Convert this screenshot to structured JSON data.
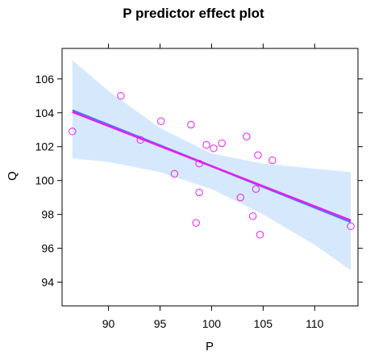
{
  "chart_data": {
    "type": "scatter",
    "title": "P predictor effect plot",
    "xlabel": "P",
    "ylabel": "Q",
    "xlim": [
      85.5,
      114.2
    ],
    "ylim": [
      92.6,
      107.8
    ],
    "xticks": [
      90,
      95,
      100,
      105,
      110
    ],
    "yticks": [
      94,
      96,
      98,
      100,
      102,
      104,
      106
    ],
    "grid": false,
    "points": [
      {
        "x": 86.5,
        "y": 102.9
      },
      {
        "x": 91.2,
        "y": 105.0
      },
      {
        "x": 93.1,
        "y": 102.4
      },
      {
        "x": 95.1,
        "y": 103.5
      },
      {
        "x": 96.4,
        "y": 100.4
      },
      {
        "x": 98.0,
        "y": 103.3
      },
      {
        "x": 98.5,
        "y": 97.5
      },
      {
        "x": 98.8,
        "y": 101.0
      },
      {
        "x": 98.8,
        "y": 99.3
      },
      {
        "x": 99.5,
        "y": 102.1
      },
      {
        "x": 100.2,
        "y": 101.9
      },
      {
        "x": 101.0,
        "y": 102.2
      },
      {
        "x": 102.8,
        "y": 99.0
      },
      {
        "x": 103.4,
        "y": 102.6
      },
      {
        "x": 104.0,
        "y": 97.9
      },
      {
        "x": 104.3,
        "y": 99.5
      },
      {
        "x": 104.5,
        "y": 101.5
      },
      {
        "x": 104.7,
        "y": 96.8
      },
      {
        "x": 105.9,
        "y": 101.2
      },
      {
        "x": 113.5,
        "y": 97.3
      }
    ],
    "fit_line": {
      "x": [
        86.5,
        113.5
      ],
      "y": [
        104.15,
        97.55
      ],
      "color": "#3b82f6"
    },
    "smooth_line": {
      "x": [
        86.5,
        113.5
      ],
      "y": [
        104.05,
        97.65
      ],
      "color": "#e81cf0"
    },
    "confidence_band": {
      "x": [
        86.5,
        90,
        95,
        100,
        105,
        110,
        113.5
      ],
      "upper": [
        107.1,
        105.3,
        103.1,
        101.6,
        101.0,
        100.7,
        100.5
      ],
      "lower": [
        101.3,
        101.1,
        100.5,
        99.5,
        98.0,
        96.2,
        94.7
      ],
      "color": "#d6e9fc"
    },
    "point_color": "#e81cf0"
  }
}
